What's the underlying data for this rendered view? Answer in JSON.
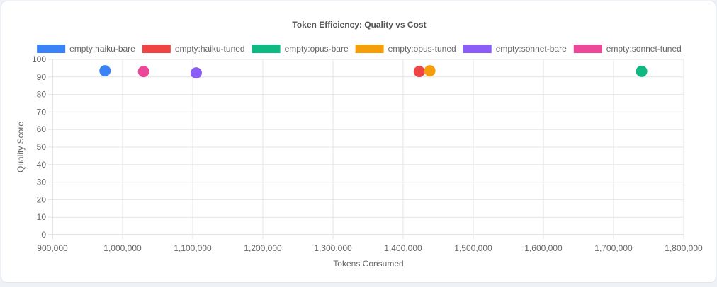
{
  "chart_data": {
    "type": "scatter",
    "title": "Token Efficiency: Quality vs Cost",
    "xlabel": "Tokens Consumed",
    "ylabel": "Quality Score",
    "xlim": [
      900000,
      1800000
    ],
    "ylim": [
      0,
      100
    ],
    "x_ticks": [
      "900,000",
      "1,000,000",
      "1,100,000",
      "1,200,000",
      "1,300,000",
      "1,400,000",
      "1,500,000",
      "1,600,000",
      "1,700,000",
      "1,800,000"
    ],
    "y_ticks": [
      "0",
      "10",
      "20",
      "30",
      "40",
      "50",
      "60",
      "70",
      "80",
      "90",
      "100"
    ],
    "grid": true,
    "legend_position": "top",
    "series": [
      {
        "name": "empty:haiku-bare",
        "color": "#3b82f6",
        "x": 975000,
        "y": 93.5
      },
      {
        "name": "empty:haiku-tuned",
        "color": "#ef4444",
        "x": 1423000,
        "y": 93.1
      },
      {
        "name": "empty:opus-bare",
        "color": "#10b981",
        "x": 1740000,
        "y": 93.2
      },
      {
        "name": "empty:opus-tuned",
        "color": "#f59e0b",
        "x": 1438000,
        "y": 93.5
      },
      {
        "name": "empty:sonnet-bare",
        "color": "#8b5cf6",
        "x": 1105000,
        "y": 92.3
      },
      {
        "name": "empty:sonnet-tuned",
        "color": "#ec4899",
        "x": 1030000,
        "y": 93.1
      }
    ]
  }
}
